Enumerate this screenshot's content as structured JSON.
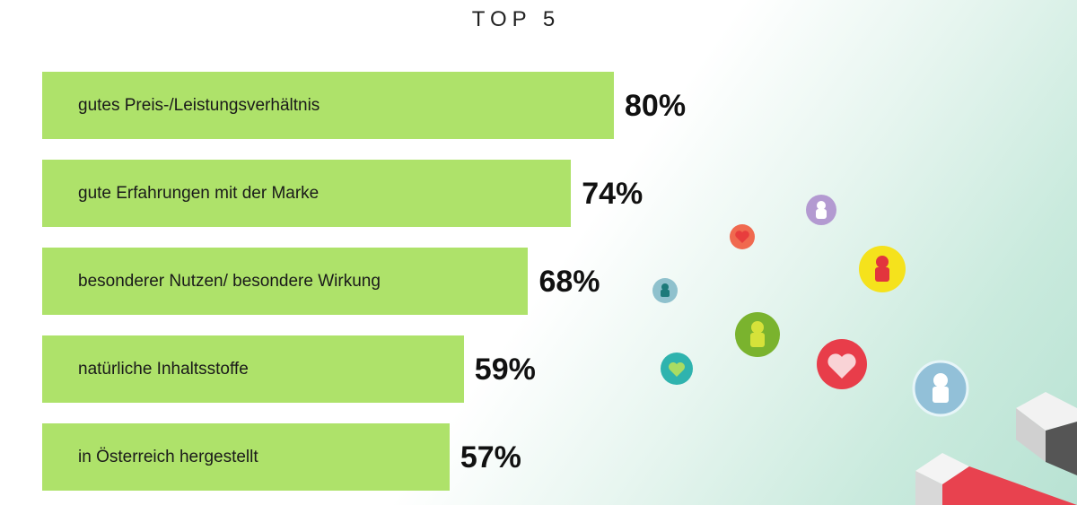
{
  "chart_data": {
    "type": "bar",
    "orientation": "horizontal",
    "title": "TOP 5",
    "categories": [
      "gutes Preis-/Leistungsverhältnis",
      "gute Erfahrungen mit der Marke",
      "besonderer Nutzen/ besondere Wirkung",
      "natürliche Inhaltsstoffe",
      "in Österreich hergestellt"
    ],
    "values": [
      80,
      74,
      68,
      59,
      57
    ],
    "value_labels": [
      "80%",
      "74%",
      "68%",
      "59%",
      "57%"
    ],
    "unit": "%",
    "grid": false,
    "bar_color": "#aee26a"
  },
  "decoration": {
    "icons": [
      "user-icon",
      "heart-icon",
      "magnet-icon"
    ],
    "colors": [
      "#b39ad1",
      "#f0694f",
      "#f5e21c",
      "#7fb7c8",
      "#7ab32e",
      "#e83d4a",
      "#2fb3ae",
      "#92c0d8"
    ]
  }
}
